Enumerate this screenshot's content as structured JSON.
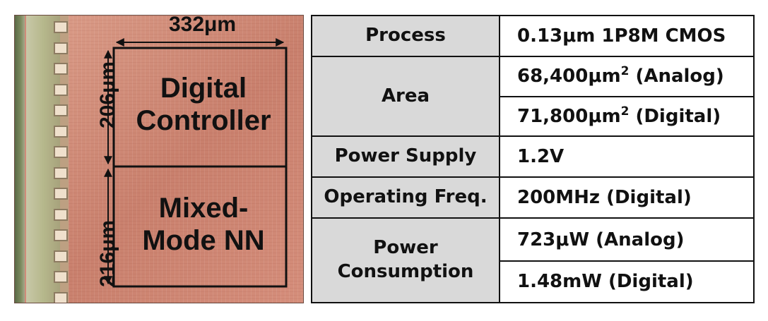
{
  "die": {
    "blocks": [
      {
        "label_line1": "Digital",
        "label_line2": "Controller"
      },
      {
        "label_line1": "Mixed-",
        "label_line2": "Mode NN"
      }
    ],
    "dimensions": {
      "width": "332μm",
      "height_top": "206μm",
      "height_bottom": "216μm"
    }
  },
  "table": {
    "rows": [
      {
        "param": "Process",
        "values": [
          "0.13μm 1P8M CMOS"
        ]
      },
      {
        "param": "Area",
        "values": [
          "68,400μm",
          "71,800μm"
        ],
        "value_suffixes": [
          " (Analog)",
          " (Digital)"
        ],
        "superscript": "2"
      },
      {
        "param": "Power Supply",
        "values": [
          "1.2V"
        ]
      },
      {
        "param": "Operating Freq.",
        "values": [
          "200MHz (Digital)"
        ]
      },
      {
        "param_line1": "Power",
        "param_line2": "Consumption",
        "values": [
          "723μW (Analog)",
          "1.48mW (Digital)"
        ]
      }
    ]
  },
  "colors": {
    "die_core": "#cf8a78",
    "table_header_bg": "#d9d9d9",
    "border": "#111111"
  }
}
